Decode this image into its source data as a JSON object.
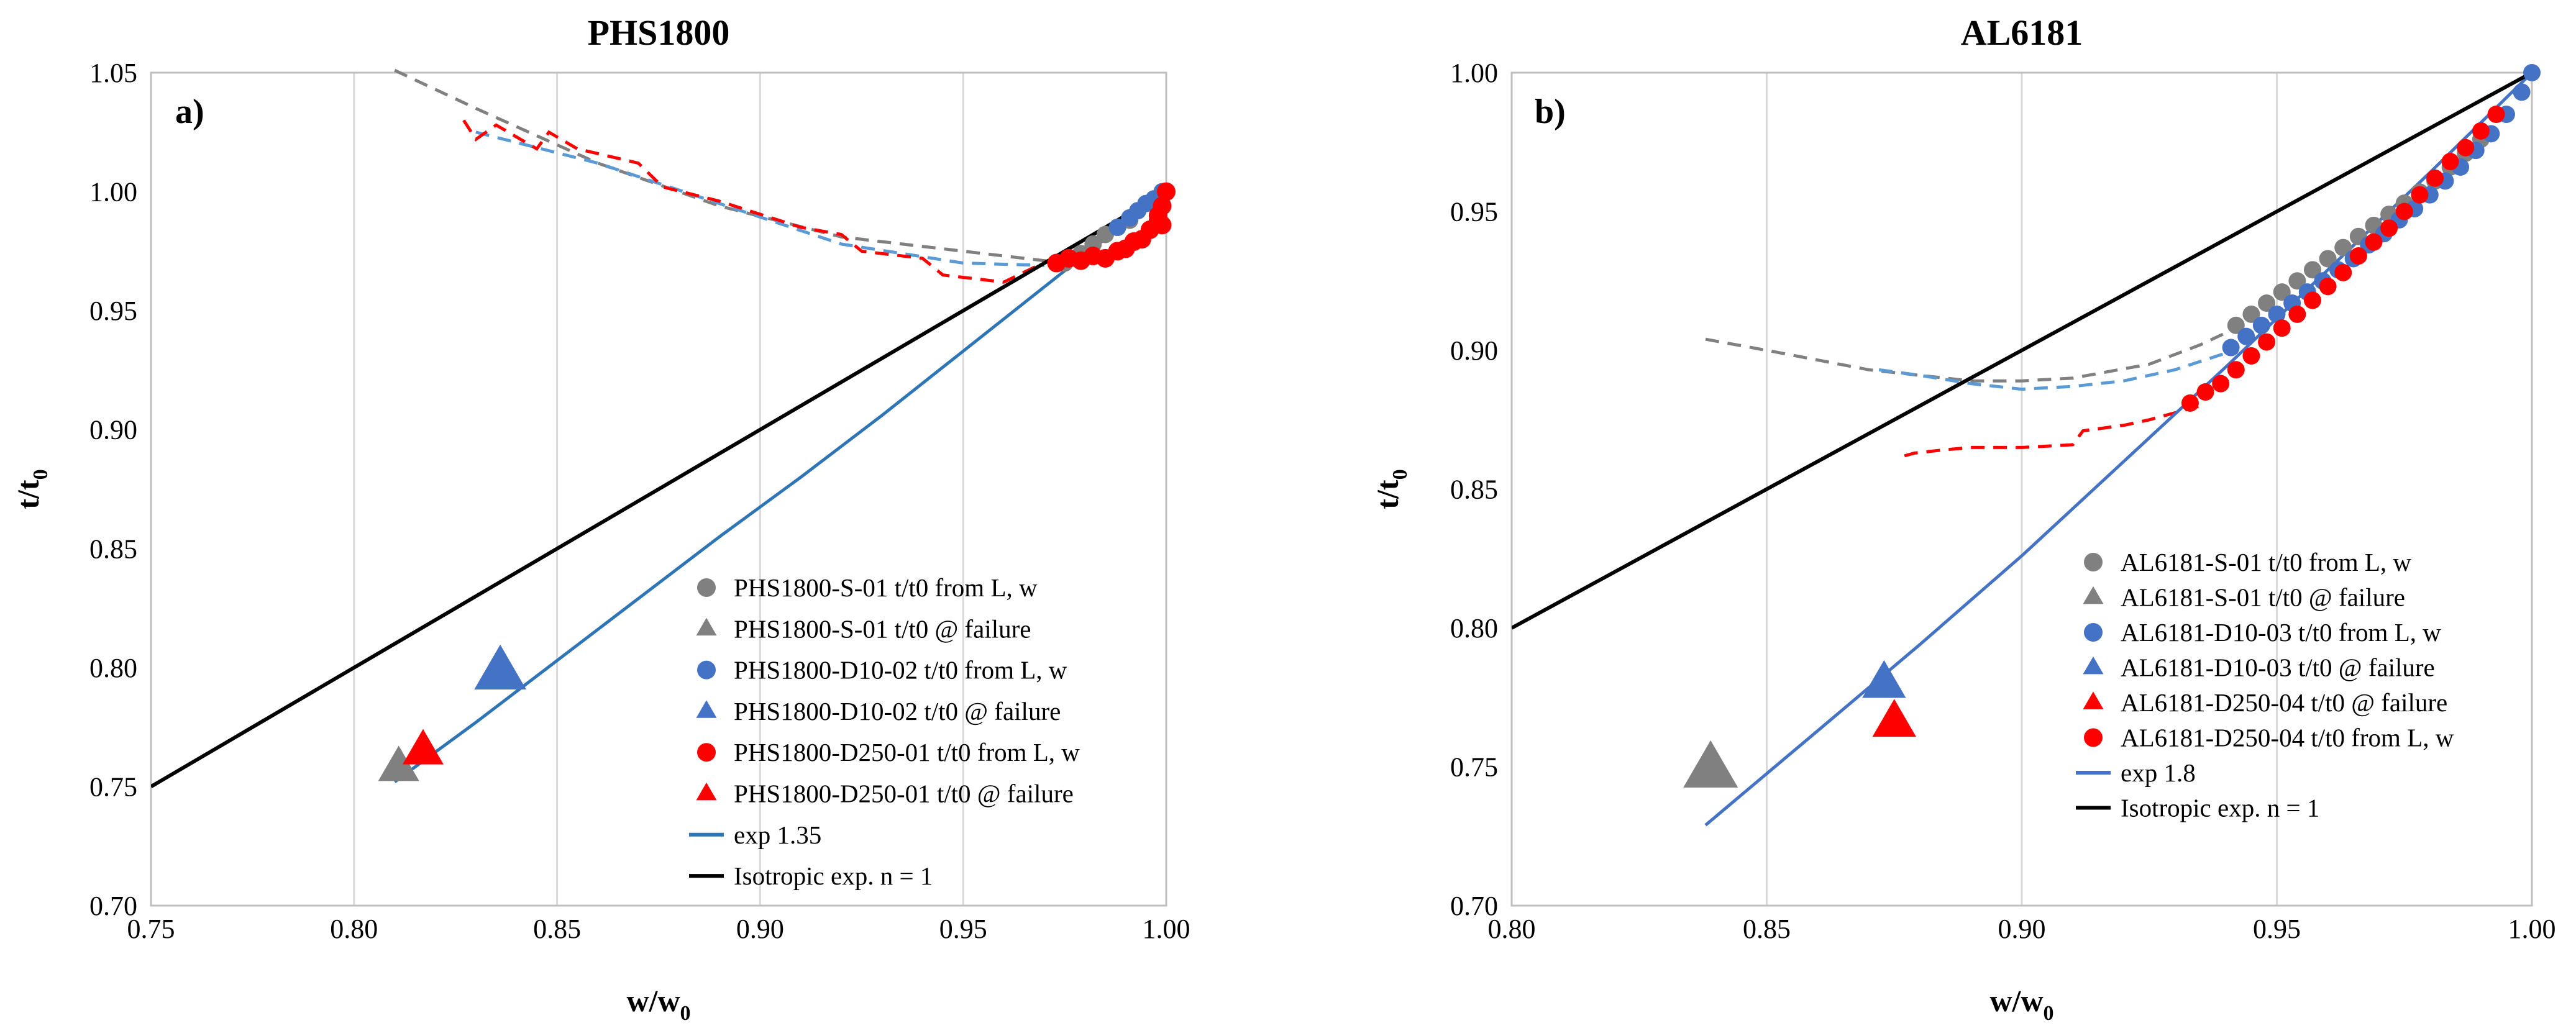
{
  "chart_data": [
    {
      "type": "scatter",
      "panel_label": "a)",
      "title": "PHS1800",
      "xlabel_main": "w/w",
      "xlabel_sub": "0",
      "ylabel_main": "t/t",
      "ylabel_sub": "0",
      "xlim": [
        0.75,
        1.0
      ],
      "ylim": [
        0.7,
        1.05
      ],
      "xticks": [
        0.75,
        0.8,
        0.85,
        0.9,
        0.95,
        1.0
      ],
      "yticks": [
        0.7,
        0.75,
        0.8,
        0.85,
        0.9,
        0.95,
        1.0,
        1.05
      ],
      "xtick_labels": [
        "0.75",
        "0.80",
        "0.85",
        "0.90",
        "0.95",
        "1.00"
      ],
      "ytick_labels": [
        "0.70",
        "0.75",
        "0.80",
        "0.85",
        "0.90",
        "0.95",
        "1.00",
        "1.05"
      ],
      "grid": "vertical",
      "series": [
        {
          "name": "PHS1800-S-01 t/t0 dashed",
          "kind": "dashed",
          "color": "#808080",
          "x": [
            0.81,
            0.83,
            0.86,
            0.89,
            0.92,
            0.95,
            0.975
          ],
          "y": [
            1.051,
            1.035,
            1.012,
            0.994,
            0.981,
            0.975,
            0.97
          ]
        },
        {
          "name": "PHS1800-D10-02 t/t0 dashed",
          "kind": "dashed",
          "color": "#5b9bd5",
          "x": [
            0.83,
            0.86,
            0.89,
            0.92,
            0.95,
            0.97
          ],
          "y": [
            1.025,
            1.012,
            0.995,
            0.978,
            0.97,
            0.969
          ]
        },
        {
          "name": "PHS1800-D250-01 t/t0 dashed",
          "kind": "dashed",
          "color": "#ff0000",
          "x": [
            0.827,
            0.83,
            0.835,
            0.845,
            0.848,
            0.855,
            0.87,
            0.876,
            0.89,
            0.91,
            0.92,
            0.925,
            0.94,
            0.945,
            0.96,
            0.972
          ],
          "y": [
            1.03,
            1.022,
            1.028,
            1.018,
            1.025,
            1.018,
            1.012,
            1.002,
            0.996,
            0.985,
            0.982,
            0.975,
            0.972,
            0.965,
            0.962,
            0.972
          ]
        },
        {
          "name": "PHS1800-S-01 t/t0 from L, w",
          "kind": "points",
          "marker": "circle",
          "color": "#808080",
          "size": 14,
          "x": [
            0.975,
            0.979,
            0.982,
            0.985,
            0.988,
            0.991
          ],
          "y": [
            0.97,
            0.974,
            0.978,
            0.982,
            0.985,
            0.988
          ]
        },
        {
          "name": "PHS1800-S-01 t/t0 @ failure",
          "kind": "points",
          "marker": "triangle",
          "color": "#808080",
          "size": 30,
          "x": [
            0.811
          ],
          "y": [
            0.758
          ]
        },
        {
          "name": "PHS1800-D10-02 t/t0 from L, w",
          "kind": "points",
          "marker": "circle",
          "color": "#4472c4",
          "size": 14,
          "x": [
            0.988,
            0.991,
            0.993,
            0.995,
            0.997,
            0.999
          ],
          "y": [
            0.985,
            0.989,
            0.992,
            0.995,
            0.997,
            1.0
          ]
        },
        {
          "name": "PHS1800-D10-02 t/t0 @ failure",
          "kind": "points",
          "marker": "triangle",
          "color": "#4472c4",
          "size": 38,
          "x": [
            0.836
          ],
          "y": [
            0.798
          ]
        },
        {
          "name": "PHS1800-D250-01 t/t0 from L, w",
          "kind": "points",
          "marker": "circle",
          "color": "#ff0000",
          "size": 15,
          "x": [
            0.973,
            0.976,
            0.979,
            0.982,
            0.985,
            0.988,
            0.99,
            0.992,
            0.994,
            0.996,
            0.998,
            0.999,
            1.0,
            0.998,
            0.999
          ],
          "y": [
            0.97,
            0.972,
            0.971,
            0.973,
            0.972,
            0.975,
            0.976,
            0.979,
            0.98,
            0.984,
            0.988,
            0.994,
            1.0,
            0.99,
            0.986
          ]
        },
        {
          "name": "PHS1800-D250-01 t/t0 @ failure",
          "kind": "points",
          "marker": "triangle",
          "color": "#ff0000",
          "size": 30,
          "x": [
            0.817
          ],
          "y": [
            0.765
          ]
        },
        {
          "name": "exp 1.35",
          "kind": "line",
          "color": "#2e75b6",
          "width": 5,
          "x": [
            0.81,
            0.83,
            0.85,
            0.87,
            0.89,
            0.91,
            0.93,
            0.95,
            0.97,
            0.99,
            1.0
          ],
          "y": [
            0.752,
            0.777,
            0.803,
            0.829,
            0.855,
            0.88,
            0.906,
            0.933,
            0.96,
            0.987,
            1.0
          ]
        },
        {
          "name": "Isotropic exp. n = 1",
          "kind": "line",
          "color": "#000000",
          "width": 6,
          "x": [
            0.75,
            1.0
          ],
          "y": [
            0.75,
            1.0
          ]
        }
      ],
      "legend": {
        "placement": "bottom-right",
        "entries": [
          {
            "label": "PHS1800-S-01 t/t0 from L, w",
            "marker": "circle",
            "color": "#808080"
          },
          {
            "label": "PHS1800-S-01 t/t0 @ failure",
            "marker": "triangle",
            "color": "#808080"
          },
          {
            "label": "PHS1800-D10-02 t/t0 from L, w",
            "marker": "circle",
            "color": "#4472c4"
          },
          {
            "label": "PHS1800-D10-02 t/t0 @ failure",
            "marker": "triangle",
            "color": "#4472c4"
          },
          {
            "label": "PHS1800-D250-01 t/t0 from L, w",
            "marker": "circle",
            "color": "#ff0000"
          },
          {
            "label": "PHS1800-D250-01 t/t0 @ failure",
            "marker": "triangle",
            "color": "#ff0000"
          },
          {
            "label": "exp 1.35",
            "marker": "line",
            "color": "#2e75b6"
          },
          {
            "label": "Isotropic  exp. n = 1",
            "marker": "line",
            "color": "#000000"
          }
        ]
      }
    },
    {
      "type": "scatter",
      "panel_label": "b)",
      "title": "AL6181",
      "xlabel_main": "w/w",
      "xlabel_sub": "0",
      "ylabel_main": "t/t",
      "ylabel_sub": "0",
      "xlim": [
        0.8,
        1.0
      ],
      "ylim": [
        0.7,
        1.0
      ],
      "xticks": [
        0.8,
        0.85,
        0.9,
        0.95,
        1.0
      ],
      "yticks": [
        0.7,
        0.75,
        0.8,
        0.85,
        0.9,
        0.95,
        1.0
      ],
      "xtick_labels": [
        "0.80",
        "0.85",
        "0.90",
        "0.95",
        "1.00"
      ],
      "ytick_labels": [
        "0.70",
        "0.75",
        "0.80",
        "0.85",
        "0.90",
        "0.95",
        "1.00"
      ],
      "grid": "vertical",
      "series": [
        {
          "name": "AL6181-S-01 t/t0 dashed",
          "kind": "dashed",
          "color": "#808080",
          "x": [
            0.838,
            0.85,
            0.87,
            0.89,
            0.9,
            0.91,
            0.925,
            0.935,
            0.942
          ],
          "y": [
            0.904,
            0.9,
            0.893,
            0.889,
            0.889,
            0.89,
            0.895,
            0.902,
            0.908
          ]
        },
        {
          "name": "AL6181-D10-03 t/t0 dashed",
          "kind": "dashed",
          "color": "#5b9bd5",
          "x": [
            0.872,
            0.88,
            0.89,
            0.9,
            0.91,
            0.92,
            0.93,
            0.94
          ],
          "y": [
            0.893,
            0.891,
            0.888,
            0.886,
            0.887,
            0.889,
            0.893,
            0.899
          ]
        },
        {
          "name": "AL6181-D250-04 t/t0 dashed",
          "kind": "dashed",
          "color": "#ff0000",
          "x": [
            0.877,
            0.879,
            0.884,
            0.89,
            0.9,
            0.91,
            0.912,
            0.92,
            0.925,
            0.935
          ],
          "y": [
            0.862,
            0.863,
            0.864,
            0.865,
            0.865,
            0.866,
            0.871,
            0.873,
            0.875,
            0.88
          ]
        },
        {
          "name": "AL6181-S-01 t/t0 from L, w",
          "kind": "points",
          "marker": "circle",
          "color": "#808080",
          "size": 14,
          "x": [
            0.942,
            0.945,
            0.948,
            0.951,
            0.954,
            0.957,
            0.96,
            0.963,
            0.966,
            0.969,
            0.972,
            0.975,
            0.978,
            0.981,
            0.984,
            0.987,
            0.99
          ],
          "y": [
            0.909,
            0.913,
            0.917,
            0.921,
            0.925,
            0.929,
            0.933,
            0.937,
            0.941,
            0.945,
            0.949,
            0.953,
            0.957,
            0.961,
            0.966,
            0.971,
            0.976
          ]
        },
        {
          "name": "AL6181-S-01 t/t0 @ failure",
          "kind": "points",
          "marker": "triangle",
          "color": "#808080",
          "size": 40,
          "x": [
            0.839
          ],
          "y": [
            0.749
          ]
        },
        {
          "name": "AL6181-D10-03 t/t0 from L, w",
          "kind": "points",
          "marker": "circle",
          "color": "#4472c4",
          "size": 14,
          "x": [
            0.941,
            0.944,
            0.947,
            0.95,
            0.953,
            0.956,
            0.959,
            0.962,
            0.965,
            0.968,
            0.971,
            0.974,
            0.977,
            0.98,
            0.983,
            0.986,
            0.989,
            0.992,
            0.995,
            0.998,
            1.0
          ],
          "y": [
            0.901,
            0.905,
            0.909,
            0.913,
            0.917,
            0.921,
            0.925,
            0.929,
            0.933,
            0.938,
            0.942,
            0.947,
            0.951,
            0.956,
            0.961,
            0.966,
            0.972,
            0.978,
            0.985,
            0.993,
            1.0
          ]
        },
        {
          "name": "AL6181-D10-03 t/t0 @ failure",
          "kind": "points",
          "marker": "triangle",
          "color": "#4472c4",
          "size": 32,
          "x": [
            0.873
          ],
          "y": [
            0.78
          ]
        },
        {
          "name": "AL6181-D250-04 t/t0 @ failure",
          "kind": "points",
          "marker": "triangle",
          "color": "#ff0000",
          "size": 32,
          "x": [
            0.875
          ],
          "y": [
            0.766
          ]
        },
        {
          "name": "AL6181-D250-04 t/t0 from L, w",
          "kind": "points",
          "marker": "circle",
          "color": "#ff0000",
          "size": 14,
          "x": [
            0.933,
            0.936,
            0.939,
            0.942,
            0.945,
            0.948,
            0.951,
            0.954,
            0.957,
            0.96,
            0.963,
            0.966,
            0.969,
            0.972,
            0.975,
            0.978,
            0.981,
            0.984,
            0.987,
            0.99,
            0.993
          ],
          "y": [
            0.881,
            0.885,
            0.888,
            0.893,
            0.898,
            0.903,
            0.908,
            0.913,
            0.918,
            0.923,
            0.928,
            0.934,
            0.939,
            0.944,
            0.95,
            0.956,
            0.962,
            0.968,
            0.973,
            0.979,
            0.985
          ]
        },
        {
          "name": "exp 1.8",
          "kind": "line",
          "color": "#4472c4",
          "width": 5,
          "x": [
            0.838,
            0.86,
            0.88,
            0.9,
            0.92,
            0.94,
            0.96,
            0.98,
            1.0
          ],
          "y": [
            0.729,
            0.763,
            0.794,
            0.826,
            0.86,
            0.894,
            0.929,
            0.964,
            1.0
          ]
        },
        {
          "name": "Isotropic exp. n = 1",
          "kind": "line",
          "color": "#000000",
          "width": 6,
          "x": [
            0.8,
            1.0
          ],
          "y": [
            0.8,
            1.0
          ]
        }
      ],
      "legend": {
        "placement": "bottom-right",
        "entries": [
          {
            "label": "AL6181-S-01 t/t0 from L, w",
            "marker": "circle",
            "color": "#808080"
          },
          {
            "label": "AL6181-S-01 t/t0 @ failure",
            "marker": "triangle",
            "color": "#808080"
          },
          {
            "label": "AL6181-D10-03 t/t0 from L, w",
            "marker": "circle",
            "color": "#4472c4"
          },
          {
            "label": "AL6181-D10-03 t/t0 @ failure",
            "marker": "triangle",
            "color": "#4472c4"
          },
          {
            "label": "AL6181-D250-04 t/t0 @ failure",
            "marker": "triangle",
            "color": "#ff0000"
          },
          {
            "label": "AL6181-D250-04 t/t0 from L, w",
            "marker": "circle",
            "color": "#ff0000"
          },
          {
            "label": "exp 1.8",
            "marker": "line",
            "color": "#4472c4"
          },
          {
            "label": "Isotropic  exp. n = 1",
            "marker": "line",
            "color": "#000000"
          }
        ]
      }
    }
  ]
}
